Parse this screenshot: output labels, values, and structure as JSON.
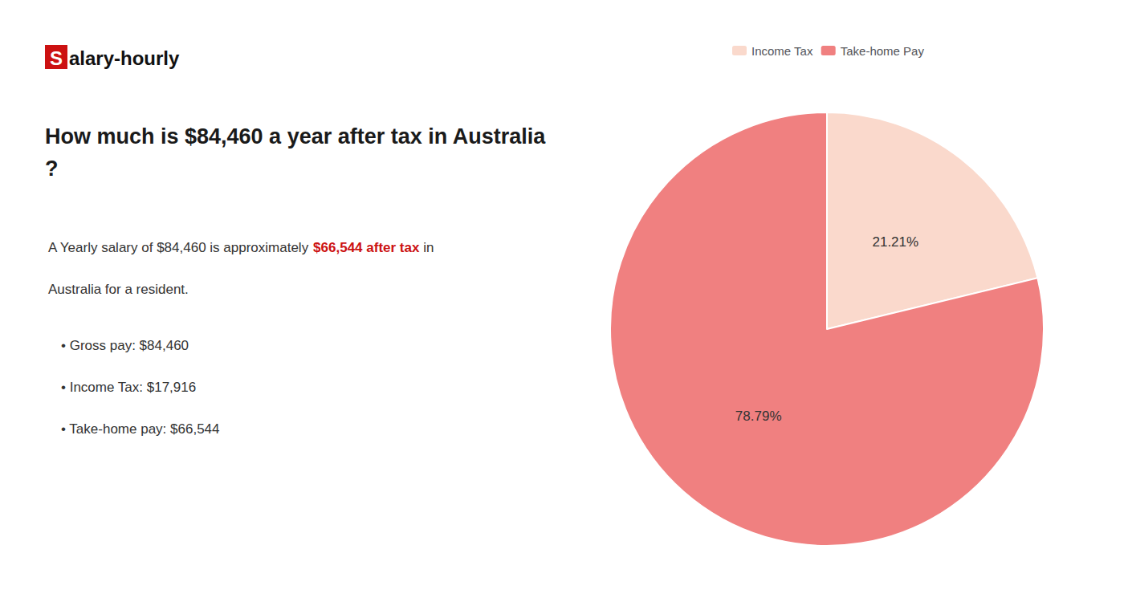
{
  "chart_data": {
    "type": "pie",
    "title": "How much is $84,460 a year after tax in Australia?",
    "annotations": [
      {
        "text": "Salary-hourly",
        "color": "#cc1111"
      },
      {
        "text": "A Yearly salary of $84,460 is approximately "
      },
      {
        "text": "$66,544 after tax",
        "color": "#cc1111"
      },
      {
        "text": " in"
      },
      {
        "text": "Australia for a resident."
      },
      {
        "text": "• Gross pay: $84,460"
      },
      {
        "text": "• Income Tax: $17,916"
      },
      {
        "text": "• Take-home pay: $66,544"
      }
    ],
    "categories": [
      "Income Tax",
      "Take-home Pay"
    ],
    "values": [
      21.21,
      78.79
    ],
    "value_labels": [
      "21.21%",
      "78.79%"
    ],
    "colors": [
      "#fad9cc",
      "#f08080"
    ],
    "data_labels": true,
    "legend": "top"
  }
}
